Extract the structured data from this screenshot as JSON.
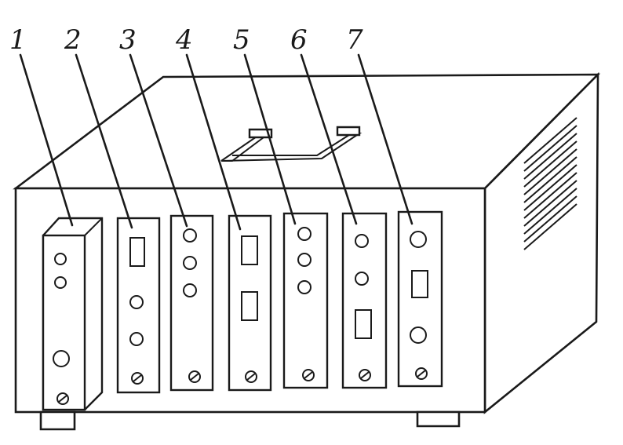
{
  "labels": [
    "1",
    "2",
    "3",
    "4",
    "5",
    "6",
    "7"
  ],
  "colors": {
    "line": "#1a1a1a",
    "background": "#ffffff"
  }
}
